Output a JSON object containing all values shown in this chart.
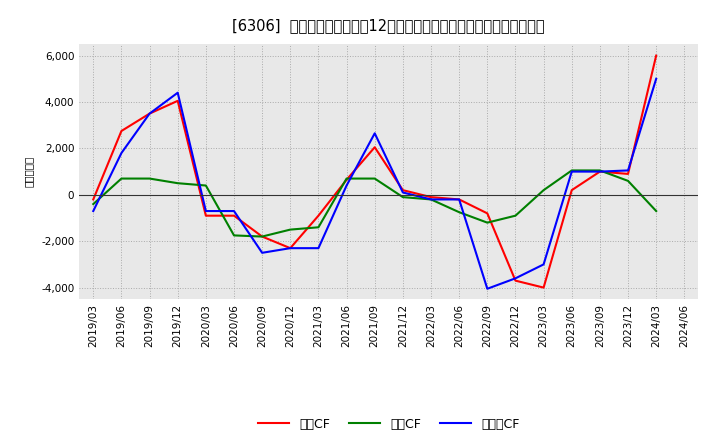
{
  "title": "[6306]  キャッシュフローの12か月移動合計の対前年同期増減額の推移",
  "ylabel": "（百万円）",
  "x_labels": [
    "2019/03",
    "2019/06",
    "2019/09",
    "2019/12",
    "2020/03",
    "2020/06",
    "2020/09",
    "2020/12",
    "2021/03",
    "2021/06",
    "2021/09",
    "2021/12",
    "2022/03",
    "2022/06",
    "2022/09",
    "2022/12",
    "2023/03",
    "2023/06",
    "2023/09",
    "2023/12",
    "2024/03",
    "2024/06"
  ],
  "eigyo_cf": [
    -200,
    2750,
    3500,
    4050,
    -900,
    -900,
    -1800,
    -2300,
    -900,
    650,
    2050,
    200,
    -100,
    -200,
    -800,
    -3700,
    -4000,
    200,
    1000,
    900,
    6000,
    null
  ],
  "toshi_cf": [
    -400,
    700,
    700,
    500,
    400,
    -1750,
    -1800,
    -1500,
    -1400,
    700,
    700,
    -100,
    -200,
    -750,
    -1200,
    -900,
    200,
    1050,
    1050,
    600,
    -700,
    null
  ],
  "free_cf": [
    -700,
    1800,
    3500,
    4400,
    -700,
    -700,
    -2500,
    -2300,
    -2300,
    400,
    2650,
    100,
    -200,
    -200,
    -4050,
    -3600,
    -3000,
    1000,
    1000,
    1050,
    5000,
    null
  ],
  "eigyo_color": "#ff0000",
  "toshi_color": "#008000",
  "free_color": "#0000ff",
  "eigyo_label": "営業CF",
  "toshi_label": "投資CF",
  "free_label": "フリーCF",
  "ylim": [
    -4500,
    6500
  ],
  "yticks": [
    -4000,
    -2000,
    0,
    2000,
    4000,
    6000
  ],
  "bg_color": "#ffffff",
  "plot_bg_color": "#e8e8e8",
  "grid_color": "#aaaaaa",
  "title_fontsize": 10.5,
  "legend_fontsize": 9,
  "axis_fontsize": 7.5
}
